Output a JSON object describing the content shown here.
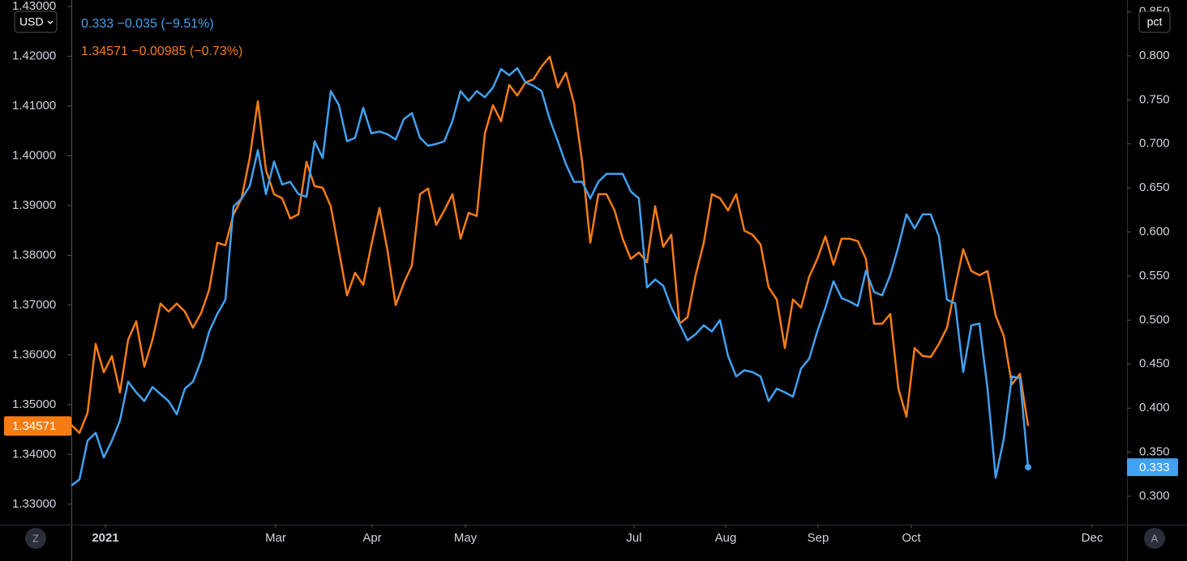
{
  "chart_data": {
    "type": "line",
    "ylabel": "USD",
    "y2label": "pct",
    "xlim": [
      0,
      130.2
    ],
    "xticks": [
      {
        "value": 4.2,
        "label": "2021"
      },
      {
        "value": 25.2,
        "label": "Mar"
      },
      {
        "value": 37.1,
        "label": "Apr"
      },
      {
        "value": 48.6,
        "label": "May"
      },
      {
        "value": 69.4,
        "label": "Jul"
      },
      {
        "value": 80.7,
        "label": "Aug"
      },
      {
        "value": 92.1,
        "label": "Sep"
      },
      {
        "value": 103.6,
        "label": "Oct"
      },
      {
        "value": 125.9,
        "label": "Dec"
      }
    ],
    "ylim": [
      1.3259,
      1.4313
    ],
    "yticks": [
      {
        "value": 1.33,
        "label": "1.33000"
      },
      {
        "value": 1.34,
        "label": "1.34000"
      },
      {
        "value": 1.35,
        "label": "1.35000"
      },
      {
        "value": 1.36,
        "label": "1.36000"
      },
      {
        "value": 1.37,
        "label": "1.37000"
      },
      {
        "value": 1.38,
        "label": "1.38000"
      },
      {
        "value": 1.39,
        "label": "1.39000"
      },
      {
        "value": 1.4,
        "label": "1.40000"
      },
      {
        "value": 1.41,
        "label": "1.41000"
      },
      {
        "value": 1.42,
        "label": "1.42000"
      },
      {
        "value": 1.43,
        "label": "1.43000"
      }
    ],
    "y2lim": [
      0.2678,
      0.8634
    ],
    "y2ticks": [
      {
        "value": 0.3,
        "label": "0.300"
      },
      {
        "value": 0.35,
        "label": "0.350"
      },
      {
        "value": 0.4,
        "label": "0.400"
      },
      {
        "value": 0.45,
        "label": "0.450"
      },
      {
        "value": 0.5,
        "label": "0.500"
      },
      {
        "value": 0.55,
        "label": "0.550"
      },
      {
        "value": 0.6,
        "label": "0.600"
      },
      {
        "value": 0.65,
        "label": "0.650"
      },
      {
        "value": 0.7,
        "label": "0.700"
      },
      {
        "value": 0.75,
        "label": "0.750"
      },
      {
        "value": 0.8,
        "label": "0.800"
      },
      {
        "value": 0.85,
        "label": "0.850"
      }
    ],
    "grid": false,
    "x": [
      0,
      1,
      2,
      3,
      4,
      5,
      6,
      7,
      8,
      9,
      10,
      11,
      12,
      13,
      14,
      15,
      16,
      17,
      18,
      19,
      20,
      21,
      22,
      23,
      24,
      25,
      26,
      27,
      28,
      29,
      30,
      31,
      32,
      33,
      34,
      35,
      36,
      37,
      38,
      39,
      40,
      41,
      42,
      43,
      44,
      45,
      46,
      47,
      48,
      49,
      50,
      51,
      52,
      53,
      54,
      55,
      56,
      57,
      58,
      59,
      60,
      61,
      62,
      63,
      64,
      65,
      66,
      67,
      68,
      69,
      70,
      71,
      72,
      73,
      74,
      75,
      76,
      77,
      78,
      79,
      80,
      81,
      82,
      83,
      84,
      85,
      86,
      87,
      88,
      89,
      90,
      91,
      92,
      93,
      94,
      95,
      96,
      97,
      98,
      99,
      100,
      101,
      102,
      103,
      104,
      105,
      106,
      107,
      108,
      109,
      110,
      111,
      112,
      113,
      114,
      115,
      116,
      117,
      118
    ],
    "series": [
      {
        "name": "0.333 −0.035 (−9.51%)",
        "color": "#42a1f0",
        "axis": "y2",
        "values": [
          0.312,
          0.319,
          0.363,
          0.372,
          0.344,
          0.363,
          0.386,
          0.43,
          0.418,
          0.408,
          0.424,
          0.416,
          0.408,
          0.393,
          0.422,
          0.43,
          0.454,
          0.487,
          0.507,
          0.523,
          0.629,
          0.638,
          0.652,
          0.693,
          0.643,
          0.68,
          0.654,
          0.657,
          0.643,
          0.64,
          0.703,
          0.684,
          0.76,
          0.744,
          0.703,
          0.707,
          0.741,
          0.712,
          0.714,
          0.711,
          0.705,
          0.728,
          0.735,
          0.707,
          0.698,
          0.7,
          0.703,
          0.726,
          0.76,
          0.749,
          0.76,
          0.753,
          0.764,
          0.785,
          0.778,
          0.786,
          0.77,
          0.766,
          0.76,
          0.728,
          0.703,
          0.677,
          0.657,
          0.657,
          0.638,
          0.657,
          0.666,
          0.666,
          0.666,
          0.646,
          0.638,
          0.537,
          0.546,
          0.539,
          0.514,
          0.496,
          0.477,
          0.484,
          0.494,
          0.487,
          0.5,
          0.459,
          0.436,
          0.443,
          0.441,
          0.436,
          0.408,
          0.422,
          0.418,
          0.413,
          0.445,
          0.456,
          0.487,
          0.514,
          0.544,
          0.525,
          0.521,
          0.516,
          0.556,
          0.532,
          0.528,
          0.551,
          0.583,
          0.62,
          0.604,
          0.62,
          0.62,
          0.595,
          0.523,
          0.519,
          0.441,
          0.494,
          0.496,
          0.422,
          0.321,
          0.365,
          0.436,
          0.434,
          0.333
        ]
      },
      {
        "name": "1.34571 −0.00985 (−0.73%)",
        "color": "#f57c14",
        "axis": "y",
        "values": [
          1.34593,
          1.34431,
          1.34837,
          1.36219,
          1.3565,
          1.35976,
          1.35244,
          1.36301,
          1.36675,
          1.35764,
          1.36301,
          1.37032,
          1.3687,
          1.37032,
          1.3687,
          1.36545,
          1.36837,
          1.37309,
          1.38252,
          1.38203,
          1.38821,
          1.39146,
          1.39959,
          1.41097,
          1.39715,
          1.39228,
          1.39146,
          1.3874,
          1.38821,
          1.39878,
          1.3939,
          1.39358,
          1.38984,
          1.38089,
          1.37195,
          1.3765,
          1.37406,
          1.38203,
          1.38951,
          1.38089,
          1.37,
          1.37439,
          1.37797,
          1.39228,
          1.39341,
          1.3861,
          1.38902,
          1.39228,
          1.38333,
          1.38854,
          1.38789,
          1.40447,
          1.41016,
          1.40691,
          1.41423,
          1.41211,
          1.41471,
          1.41537,
          1.41797,
          1.41992,
          1.41374,
          1.41667,
          1.41049,
          1.39878,
          1.38252,
          1.39228,
          1.39228,
          1.38902,
          1.38333,
          1.37927,
          1.38057,
          1.37862,
          1.38984,
          1.38171,
          1.38415,
          1.36626,
          1.36756,
          1.37602,
          1.38252,
          1.39228,
          1.39146,
          1.38902,
          1.39228,
          1.38496,
          1.38415,
          1.38219,
          1.37358,
          1.37114,
          1.36138,
          1.37114,
          1.36951,
          1.37569,
          1.37927,
          1.38382,
          1.37813,
          1.38333,
          1.38333,
          1.38284,
          1.37927,
          1.36626,
          1.36626,
          1.36821,
          1.35325,
          1.34756,
          1.36138,
          1.35976,
          1.35959,
          1.36219,
          1.36545,
          1.37358,
          1.38122,
          1.37683,
          1.37602,
          1.37683,
          1.36789,
          1.36382,
          1.35406,
          1.35618,
          1.34571
        ]
      }
    ]
  },
  "controls": {
    "left_button": "Z",
    "right_button": "A"
  }
}
